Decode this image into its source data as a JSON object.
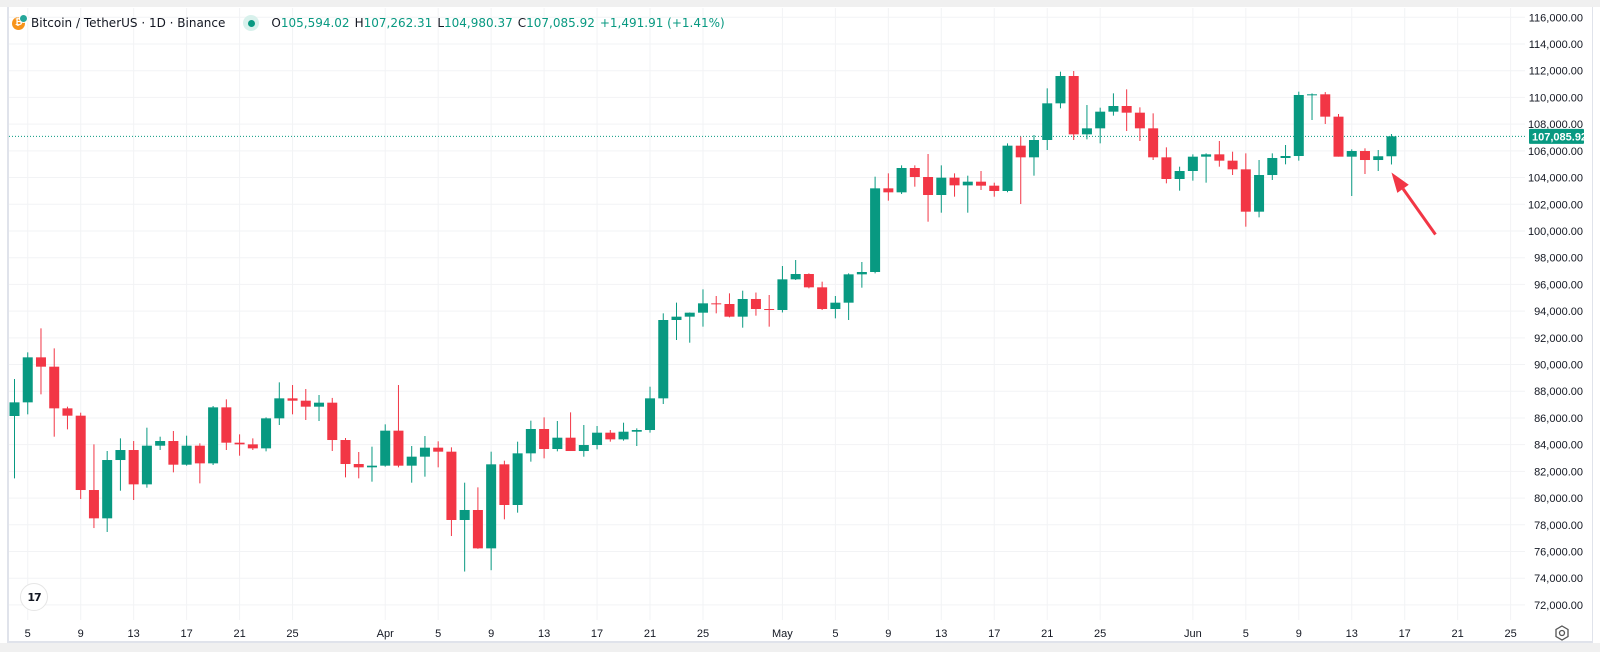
{
  "legend": {
    "symbol": "Bitcoin / TetherUS · 1D · Binance",
    "open_label": "O",
    "open": "105,594.02",
    "high_label": "H",
    "high": "107,262.31",
    "low_label": "L",
    "low": "104,980.37",
    "close_label": "C",
    "close": "107,085.92",
    "change": "+1,491.91 (+1.41%)"
  },
  "logo_text": "TV",
  "colors": {
    "up": "#089981",
    "down": "#f23645",
    "grid": "#f2f3f5",
    "arrow": "#f23645"
  },
  "chart_data": {
    "type": "candlestick",
    "interval": "1D",
    "columns": [
      "date",
      "open",
      "high",
      "low",
      "close"
    ],
    "candles": [
      [
        "Mar 4",
        86146,
        88916,
        81478,
        87168
      ],
      [
        "Mar 5",
        87168,
        90912,
        86270,
        90538
      ],
      [
        "Mar 6",
        90538,
        92710,
        87767,
        89839
      ],
      [
        "Mar 7",
        89839,
        91211,
        84597,
        86719
      ],
      [
        "Mar 8",
        86719,
        86844,
        85146,
        86170
      ],
      [
        "Mar 9",
        86170,
        86395,
        79930,
        80604
      ],
      [
        "Mar 10",
        80604,
        84023,
        77755,
        78483
      ],
      [
        "Mar 11",
        78483,
        83525,
        77462,
        82850
      ],
      [
        "Mar 12",
        82850,
        84472,
        80553,
        83599
      ],
      [
        "Mar 13",
        83599,
        84273,
        79855,
        81028
      ],
      [
        "Mar 14",
        81028,
        85271,
        80778,
        83923
      ],
      [
        "Mar 15",
        83923,
        84597,
        83599,
        84273
      ],
      [
        "Mar 16",
        84273,
        85022,
        81927,
        82500
      ],
      [
        "Mar 17",
        82500,
        84672,
        82426,
        83923
      ],
      [
        "Mar 18",
        83923,
        84100,
        81103,
        82600
      ],
      [
        "Mar 19",
        82600,
        86894,
        82476,
        86794
      ],
      [
        "Mar 20",
        86794,
        87393,
        83599,
        84148
      ],
      [
        "Mar 21",
        84148,
        84772,
        83174,
        84023
      ],
      [
        "Mar 22",
        84023,
        84472,
        83599,
        83723
      ],
      [
        "Mar 23",
        83723,
        86045,
        83500,
        85970
      ],
      [
        "Mar 24",
        85970,
        88666,
        85472,
        87468
      ],
      [
        "Mar 25",
        87468,
        88466,
        86271,
        87293
      ],
      [
        "Mar 26",
        87293,
        88168,
        85846,
        86844
      ],
      [
        "Mar 27",
        86844,
        87718,
        85772,
        87144
      ],
      [
        "Mar 28",
        87144,
        87500,
        83525,
        84348
      ],
      [
        "Mar 29",
        84348,
        84500,
        81554,
        82551
      ],
      [
        "Mar 30",
        82551,
        83450,
        81478,
        82302
      ],
      [
        "Mar 31",
        82302,
        83849,
        81229,
        82427
      ],
      [
        "Apr 1",
        82427,
        85521,
        82352,
        85048
      ],
      [
        "Apr 2",
        85048,
        88466,
        82302,
        82427
      ],
      [
        "Apr 3",
        82427,
        83899,
        81154,
        83101
      ],
      [
        "Apr 4",
        83101,
        84647,
        81603,
        83775
      ],
      [
        "Apr 5",
        83775,
        84250,
        82302,
        83475
      ],
      [
        "Apr 6",
        83475,
        83800,
        77159,
        78359
      ],
      [
        "Apr 7",
        78359,
        81154,
        74500,
        79108
      ],
      [
        "Apr 8",
        79108,
        80804,
        76200,
        76236
      ],
      [
        "Apr 9",
        76236,
        83475,
        74600,
        82527
      ],
      [
        "Apr 10",
        82527,
        82800,
        78409,
        79482
      ],
      [
        "Apr 11",
        79482,
        84224,
        78908,
        83350
      ],
      [
        "Apr 12",
        83350,
        85796,
        82727,
        85173
      ],
      [
        "Apr 13",
        85173,
        86045,
        82975,
        83674
      ],
      [
        "Apr 14",
        83674,
        85770,
        83500,
        84522
      ],
      [
        "Apr 15",
        84522,
        86419,
        83524,
        83524
      ],
      [
        "Apr 16",
        83524,
        85472,
        83100,
        83973
      ],
      [
        "Apr 17",
        83973,
        85396,
        83649,
        84897
      ],
      [
        "Apr 18",
        84897,
        85096,
        84223,
        84397
      ],
      [
        "Apr 19",
        84397,
        85645,
        84300,
        84971
      ],
      [
        "Apr 20",
        84971,
        85222,
        83899,
        85097
      ],
      [
        "Apr 21",
        85097,
        88341,
        84900,
        87468
      ],
      [
        "Apr 22",
        87468,
        93833,
        87044,
        93334
      ],
      [
        "Apr 23",
        93334,
        94632,
        91836,
        93584
      ],
      [
        "Apr 24",
        93584,
        93900,
        91636,
        93883
      ],
      [
        "Apr 25",
        93883,
        95630,
        92835,
        94582
      ],
      [
        "Apr 26",
        94582,
        95132,
        93833,
        94532
      ],
      [
        "Apr 27",
        94532,
        95331,
        93533,
        93584
      ],
      [
        "Apr 28",
        93584,
        95530,
        92759,
        94907
      ],
      [
        "Apr 29",
        94907,
        95391,
        93658,
        94157
      ],
      [
        "Apr 30",
        94157,
        95206,
        92835,
        94083
      ],
      [
        "May 1",
        94083,
        97377,
        93900,
        96379
      ],
      [
        "May 2",
        96379,
        97826,
        96329,
        96778
      ],
      [
        "May 3",
        96778,
        96828,
        95705,
        95780
      ],
      [
        "May 4",
        95780,
        96204,
        94082,
        94157
      ],
      [
        "May 5",
        94157,
        95131,
        93458,
        94632
      ],
      [
        "May 6",
        94632,
        96828,
        93333,
        96753
      ],
      [
        "May 7",
        96753,
        97677,
        95754,
        96928
      ],
      [
        "May 8",
        96928,
        104066,
        96828,
        103193
      ],
      [
        "May 9",
        103193,
        104316,
        102269,
        102893
      ],
      [
        "May 10",
        102893,
        104915,
        102768,
        104716
      ],
      [
        "May 11",
        104716,
        104915,
        103317,
        104042
      ],
      [
        "May 12",
        104042,
        105764,
        100696,
        102694
      ],
      [
        "May 13",
        102694,
        104915,
        101370,
        103992
      ],
      [
        "May 14",
        103992,
        104316,
        102569,
        103417
      ],
      [
        "May 15",
        103417,
        104141,
        101370,
        103692
      ],
      [
        "May 16",
        103692,
        104491,
        103068,
        103392
      ],
      [
        "May 17",
        103392,
        103617,
        102569,
        102994
      ],
      [
        "May 18",
        102994,
        106562,
        102900,
        106388
      ],
      [
        "May 19",
        106388,
        107062,
        102020,
        105515
      ],
      [
        "May 20",
        105515,
        107187,
        104141,
        106812
      ],
      [
        "May 21",
        106812,
        110681,
        106063,
        109558
      ],
      [
        "May 22",
        109558,
        111929,
        109184,
        111604
      ],
      [
        "May 23",
        111604,
        111980,
        106812,
        107237
      ],
      [
        "May 24",
        107237,
        109432,
        106861,
        107686
      ],
      [
        "May 25",
        107686,
        109233,
        106563,
        108934
      ],
      [
        "May 26",
        108934,
        110307,
        108635,
        109358
      ],
      [
        "May 27",
        109358,
        110606,
        107486,
        108859
      ],
      [
        "May 28",
        108859,
        109259,
        106737,
        107686
      ],
      [
        "May 29",
        107686,
        108809,
        105314,
        105515
      ],
      [
        "May 30",
        105515,
        106263,
        103567,
        103892
      ],
      [
        "May 31",
        103892,
        104815,
        103018,
        104491
      ],
      [
        "Jun 1",
        104491,
        105739,
        103767,
        105564
      ],
      [
        "Jun 2",
        105564,
        105813,
        103618,
        105739
      ],
      [
        "Jun 3",
        105739,
        106737,
        104815,
        105265
      ],
      [
        "Jun 4",
        105265,
        105938,
        104191,
        104616
      ],
      [
        "Jun 5",
        104616,
        105813,
        100322,
        101445
      ],
      [
        "Jun 6",
        101445,
        105314,
        101021,
        104191
      ],
      [
        "Jun 7",
        104191,
        105814,
        103817,
        105465
      ],
      [
        "Jun 8",
        105465,
        106439,
        104990,
        105614
      ],
      [
        "Jun 9",
        105614,
        110432,
        105265,
        110183
      ],
      [
        "Jun 10",
        110183,
        110300,
        108310,
        110233
      ],
      [
        "Jun 11",
        110233,
        110400,
        108011,
        108560
      ],
      [
        "Jun 12",
        108560,
        108759,
        105564,
        105564
      ],
      [
        "Jun 13",
        105564,
        106113,
        102619,
        105988
      ],
      [
        "Jun 14",
        105988,
        106189,
        104266,
        105314
      ],
      [
        "Jun 15",
        105314,
        106064,
        104491,
        105594
      ],
      [
        "Jun 16",
        105594.02,
        107262.31,
        104980.37,
        107085.92
      ]
    ],
    "last_price": 107085.92,
    "last_price_label": "107,085.92",
    "ylim": [
      72000,
      116000
    ],
    "y_ticks": [
      "72,000.00",
      "74,000.00",
      "76,000.00",
      "78,000.00",
      "80,000.00",
      "82,000.00",
      "84,000.00",
      "86,000.00",
      "88,000.00",
      "90,000.00",
      "92,000.00",
      "94,000.00",
      "96,000.00",
      "98,000.00",
      "100,000.00",
      "102,000.00",
      "104,000.00",
      "106,000.00",
      "108,000.00",
      "110,000.00",
      "112,000.00",
      "114,000.00",
      "116,000.00"
    ],
    "x_ticks": [
      {
        "label": "5",
        "date": "Mar 5"
      },
      {
        "label": "9",
        "date": "Mar 9"
      },
      {
        "label": "13",
        "date": "Mar 13"
      },
      {
        "label": "17",
        "date": "Mar 17"
      },
      {
        "label": "21",
        "date": "Mar 21"
      },
      {
        "label": "25",
        "date": "Mar 25"
      },
      {
        "label": "Apr",
        "date": "Apr 1"
      },
      {
        "label": "5",
        "date": "Apr 5"
      },
      {
        "label": "9",
        "date": "Apr 9"
      },
      {
        "label": "13",
        "date": "Apr 13"
      },
      {
        "label": "17",
        "date": "Apr 17"
      },
      {
        "label": "21",
        "date": "Apr 21"
      },
      {
        "label": "25",
        "date": "Apr 25"
      },
      {
        "label": "May",
        "date": "May 1"
      },
      {
        "label": "5",
        "date": "May 5"
      },
      {
        "label": "9",
        "date": "May 9"
      },
      {
        "label": "13",
        "date": "May 13"
      },
      {
        "label": "17",
        "date": "May 17"
      },
      {
        "label": "21",
        "date": "May 21"
      },
      {
        "label": "25",
        "date": "May 25"
      },
      {
        "label": "Jun",
        "date": "Jun 1"
      },
      {
        "label": "5",
        "date": "Jun 5"
      },
      {
        "label": "9",
        "date": "Jun 9"
      },
      {
        "label": "13",
        "date": "Jun 13"
      },
      {
        "label": "17",
        "date": "Jun 17"
      },
      {
        "label": "21",
        "date": "Jun 21"
      },
      {
        "label": "25",
        "date": "Jun 25"
      }
    ],
    "grid": true,
    "annotation": {
      "type": "arrow",
      "points_to": "Jun 16",
      "color": "#f23645"
    }
  }
}
